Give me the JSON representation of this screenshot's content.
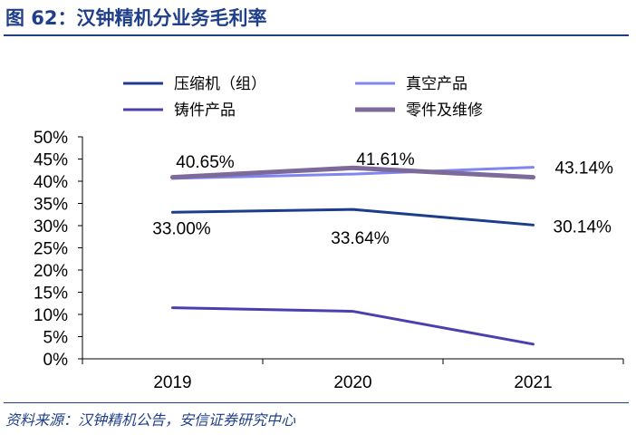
{
  "header": {
    "title": "图 62：汉钟精机分业务毛利率"
  },
  "footer": {
    "source": "资料来源：汉钟精机公告，安信证券研究中心"
  },
  "chart_data": {
    "type": "line",
    "title": "",
    "xlabel": "",
    "ylabel": "",
    "categories": [
      "2019",
      "2020",
      "2021"
    ],
    "ylim": [
      0,
      50
    ],
    "yticks": [
      "0%",
      "5%",
      "10%",
      "15%",
      "20%",
      "25%",
      "30%",
      "35%",
      "40%",
      "45%",
      "50%"
    ],
    "grid": false,
    "legend": "top",
    "series": [
      {
        "name": "压缩机（组）",
        "color": "#1c3c8c",
        "values": [
          33.0,
          33.64,
          30.14
        ],
        "labels": [
          "33.00%",
          "33.64%",
          "30.14%"
        ]
      },
      {
        "name": "真空产品",
        "color": "#7f86f0",
        "values": [
          40.65,
          41.61,
          43.14
        ],
        "labels": [
          "40.65%",
          "41.61%",
          "43.14%"
        ]
      },
      {
        "name": "铸件产品",
        "color": "#4a3fb0",
        "values": [
          11.5,
          10.7,
          3.3
        ],
        "labels": []
      },
      {
        "name": "零件及维修",
        "color": "#7d6a9a",
        "values": [
          40.9,
          43.0,
          40.9
        ],
        "labels": []
      }
    ]
  }
}
